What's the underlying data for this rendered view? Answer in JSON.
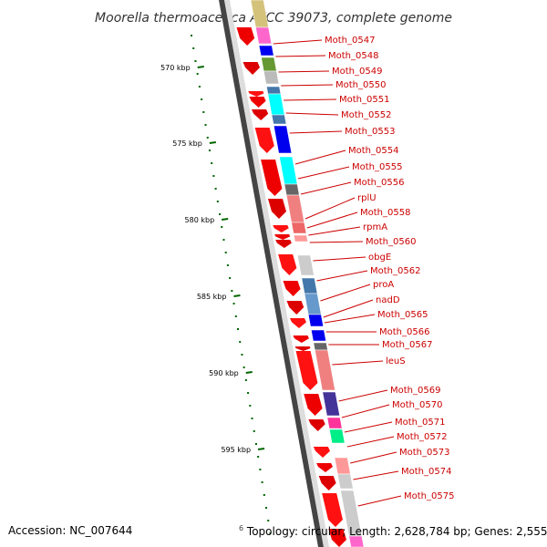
{
  "title": "Moorella thermoacetica ATCC 39073, complete genome",
  "footer": {
    "accession": "Accession: NC_007644",
    "topology_prefix": "6",
    "topology": "Topology: circular; Length: 2,628,784 bp; Genes: 2,555"
  },
  "colors": {
    "backbone_dark": "#444444",
    "backbone_light": "#dddddd",
    "tick_green": "#006600",
    "label_red": "#cc0000",
    "arrow_red": "#ee0000"
  },
  "kbp_ticks": [
    {
      "label": "570 kbp"
    },
    {
      "label": "575 kbp"
    },
    {
      "label": "580 kbp"
    },
    {
      "label": "585 kbp"
    },
    {
      "label": "590 kbp"
    },
    {
      "label": "595 kbp"
    }
  ],
  "genes": [
    {
      "name": "Moth_0547",
      "color": "#ff66cc"
    },
    {
      "name": "Moth_0548",
      "color": "#0000ee"
    },
    {
      "name": "Moth_0549",
      "color": "#669933"
    },
    {
      "name": "Moth_0550",
      "color": "#bbbbbb"
    },
    {
      "name": "Moth_0551",
      "color": "#00ffff"
    },
    {
      "name": "Moth_0552",
      "color": "#4477aa"
    },
    {
      "name": "Moth_0553",
      "color": "#0000ee"
    },
    {
      "name": "Moth_0554",
      "color": "#00ffff"
    },
    {
      "name": "Moth_0555",
      "color": "#666666"
    },
    {
      "name": "Moth_0556",
      "color": "#f08080"
    },
    {
      "name": "rplU",
      "color": "#cccccc"
    },
    {
      "name": "Moth_0558",
      "color": "#ee6666"
    },
    {
      "name": "rpmA",
      "color": "#ff9999"
    },
    {
      "name": "Moth_0560",
      "color": "#dddddd"
    },
    {
      "name": "obgE",
      "color": "#cccccc"
    },
    {
      "name": "Moth_0562",
      "color": "#4477aa"
    },
    {
      "name": "proA",
      "color": "#6699cc"
    },
    {
      "name": "nadD",
      "color": "#0000ee"
    },
    {
      "name": "Moth_0565",
      "color": "#ffffff"
    },
    {
      "name": "Moth_0566",
      "color": "#0000ee"
    },
    {
      "name": "Moth_0567",
      "color": "#666666"
    },
    {
      "name": "leuS",
      "color": "#f08080"
    },
    {
      "name": "Moth_0569",
      "color": "#443399"
    },
    {
      "name": "Moth_0570",
      "color": "#ff3399"
    },
    {
      "name": "Moth_0571",
      "color": "#00ee88"
    },
    {
      "name": "Moth_0572",
      "color": "#ffffff"
    },
    {
      "name": "Moth_0573",
      "color": "#ff9999"
    },
    {
      "name": "Moth_0574",
      "color": "#cccccc"
    },
    {
      "name": "Moth_0575",
      "color": "#cccccc"
    }
  ],
  "arrow_colors": [
    "#ee0000",
    "#dd0000",
    "#ff1111"
  ]
}
